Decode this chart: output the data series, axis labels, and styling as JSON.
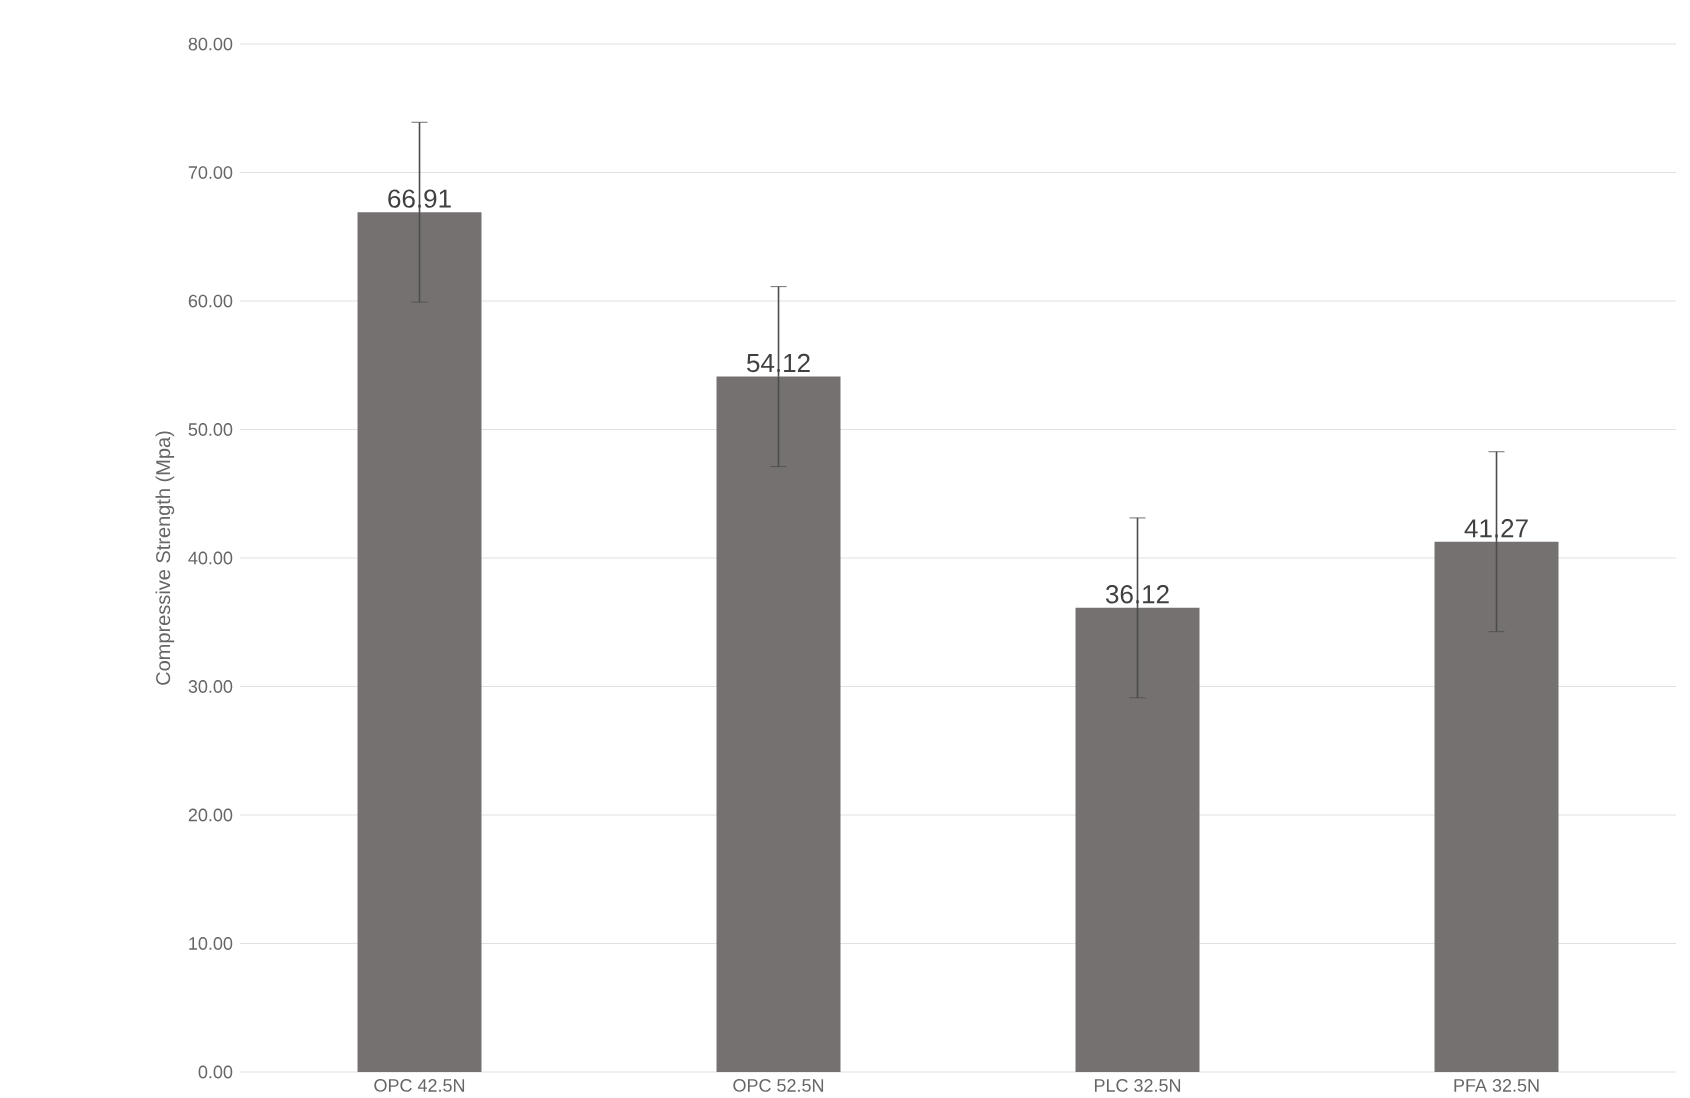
{
  "chart_data": {
    "type": "bar",
    "ylabel": "Compressive Strength (Mpa)",
    "categories": [
      "OPC 42.5N",
      "OPC 52.5N",
      "PLC 32.5N",
      "PFA 32.5N"
    ],
    "values": [
      66.91,
      54.12,
      36.12,
      41.27
    ],
    "errors": [
      7,
      7,
      7,
      7
    ],
    "color": "#767171",
    "ylim": [
      0,
      80
    ],
    "yticks": [
      {
        "value": 0,
        "label": "0.00"
      },
      {
        "value": 10,
        "label": "10.00"
      },
      {
        "value": 20,
        "label": "20.00"
      },
      {
        "value": 30,
        "label": "30.00"
      },
      {
        "value": 40,
        "label": "40.00"
      },
      {
        "value": 50,
        "label": "50.00"
      },
      {
        "value": 60,
        "label": "60.00"
      },
      {
        "value": 70,
        "label": "70.00"
      },
      {
        "value": 80,
        "label": "80.00"
      }
    ],
    "grid": "y",
    "data_labels": true
  }
}
